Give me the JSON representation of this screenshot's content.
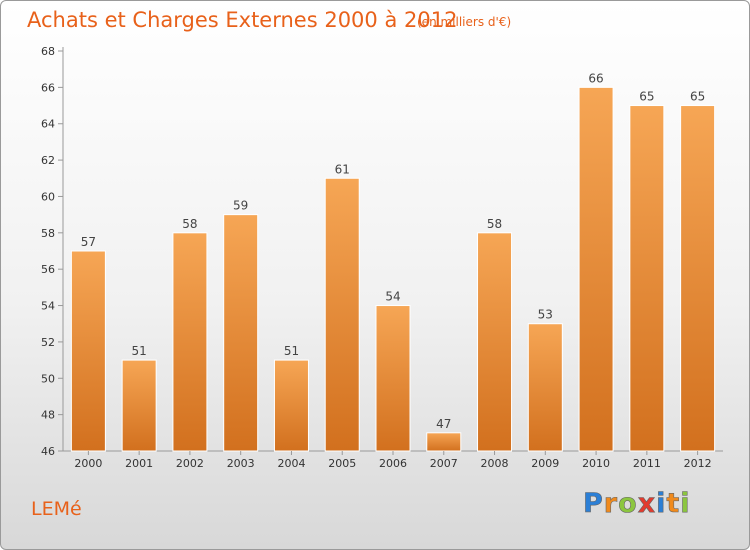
{
  "header": {
    "title": "Achats et Charges Externes 2000 à 2012",
    "unit": "(en milliers d'€)"
  },
  "footer": {
    "commune": "LEMé",
    "logo_text": "Proxiti",
    "logo_letters": [
      {
        "char": "P",
        "color": "#2b7fd6"
      },
      {
        "char": "r",
        "color": "#f08a1c"
      },
      {
        "char": "o",
        "color": "#8cc63f"
      },
      {
        "char": "x",
        "color": "#e23b2e"
      },
      {
        "char": "i",
        "color": "#2b7fd6"
      },
      {
        "char": "t",
        "color": "#f08a1c"
      },
      {
        "char": "i",
        "color": "#8cc63f"
      }
    ]
  },
  "colors": {
    "accent": "#e8611a",
    "bar_light": "#f6a655",
    "bar_dark": "#d2701e"
  },
  "chart_data": {
    "type": "bar",
    "categories": [
      "2000",
      "2001",
      "2002",
      "2003",
      "2004",
      "2005",
      "2006",
      "2007",
      "2008",
      "2009",
      "2010",
      "2011",
      "2012"
    ],
    "values": [
      57,
      51,
      58,
      59,
      51,
      61,
      54,
      47,
      58,
      53,
      66,
      65,
      65
    ],
    "ylim": [
      46,
      68
    ],
    "yticks": [
      46,
      48,
      50,
      52,
      54,
      56,
      58,
      60,
      62,
      64,
      66,
      68
    ],
    "grid": false,
    "legend": "none"
  }
}
